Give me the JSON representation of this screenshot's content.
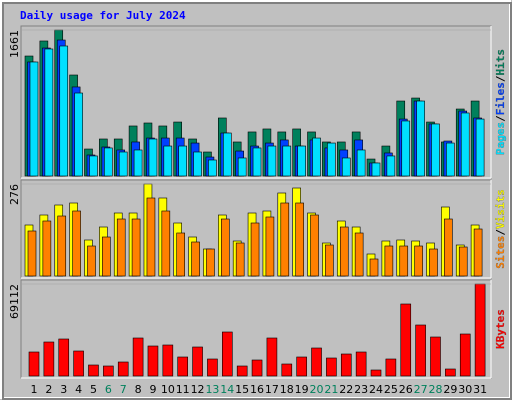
{
  "chart_data": [
    {
      "type": "bar",
      "title": "Daily usage for July 2024",
      "legend_separator": "/",
      "ylim": [
        0,
        1661
      ],
      "yticks": [
        1661
      ],
      "series": [
        {
          "name": "Hits",
          "color": "#00805c",
          "values": [
            1365,
            1536,
            1661,
            1149,
            307,
            421,
            421,
            569,
            603,
            569,
            614,
            421,
            273,
            660,
            387,
            501,
            535,
            501,
            535,
            501,
            387,
            387,
            501,
            193,
            341,
            853,
            887,
            614,
            387,
            762,
            853
          ]
        },
        {
          "name": "Files",
          "color": "#0040ff",
          "values": [
            1297,
            1456,
            1547,
            1013,
            239,
            330,
            296,
            387,
            432,
            432,
            432,
            375,
            216,
            489,
            284,
            341,
            375,
            410,
            341,
            410,
            319,
            296,
            410,
            148,
            262,
            648,
            853,
            592,
            398,
            739,
            660
          ]
        },
        {
          "name": "Pages",
          "color": "#00e0ff",
          "values": [
            1297,
            1445,
            1479,
            944,
            228,
            319,
            273,
            296,
            421,
            341,
            341,
            273,
            182,
            489,
            205,
            319,
            341,
            341,
            341,
            432,
            375,
            205,
            296,
            148,
            228,
            626,
            853,
            592,
            375,
            717,
            648
          ]
        }
      ]
    },
    {
      "type": "bar",
      "legend_separator": "/",
      "ylim": [
        0,
        276
      ],
      "yticks": [
        276
      ],
      "series": [
        {
          "name": "Visits",
          "color": "#ffff00",
          "values": [
            153,
            183,
            213,
            219,
            108,
            147,
            189,
            189,
            276,
            234,
            159,
            117,
            81,
            183,
            105,
            189,
            195,
            249,
            264,
            189,
            99,
            165,
            147,
            66,
            105,
            108,
            105,
            99,
            207,
            93,
            153
          ]
        },
        {
          "name": "Sites",
          "color": "#ff8000",
          "values": [
            135,
            165,
            180,
            195,
            90,
            117,
            171,
            171,
            234,
            195,
            129,
            102,
            81,
            171,
            99,
            159,
            177,
            219,
            219,
            183,
            93,
            147,
            129,
            51,
            90,
            90,
            90,
            81,
            171,
            87,
            141
          ]
        }
      ]
    },
    {
      "type": "bar",
      "ylim": [
        0,
        69112
      ],
      "yticks": [
        69112
      ],
      "categories": [
        "1",
        "2",
        "3",
        "4",
        "5",
        "6",
        "7",
        "8",
        "9",
        "10",
        "11",
        "12",
        "13",
        "14",
        "15",
        "16",
        "17",
        "18",
        "19",
        "20",
        "21",
        "22",
        "23",
        "24",
        "25",
        "26",
        "27",
        "28",
        "29",
        "30",
        "31"
      ],
      "category_colors": [
        "#000000",
        "#000000",
        "#000000",
        "#000000",
        "#000000",
        "#00805c",
        "#00805c",
        "#000000",
        "#000000",
        "#000000",
        "#000000",
        "#000000",
        "#00805c",
        "#00805c",
        "#000000",
        "#000000",
        "#000000",
        "#000000",
        "#000000",
        "#00805c",
        "#00805c",
        "#000000",
        "#000000",
        "#000000",
        "#000000",
        "#000000",
        "#00805c",
        "#00805c",
        "#000000",
        "#000000",
        "#000000"
      ],
      "series": [
        {
          "name": "KBytes",
          "color": "#ff0000",
          "values": [
            18029,
            25541,
            27795,
            18781,
            8263,
            7512,
            10517,
            28546,
            22536,
            23287,
            14273,
            21785,
            12771,
            33053,
            7512,
            12019,
            28546,
            9015,
            14273,
            21034,
            13522,
            16527,
            18029,
            4507,
            12771,
            54087,
            38311,
            29297,
            5258,
            31550,
            69112
          ]
        }
      ]
    }
  ]
}
